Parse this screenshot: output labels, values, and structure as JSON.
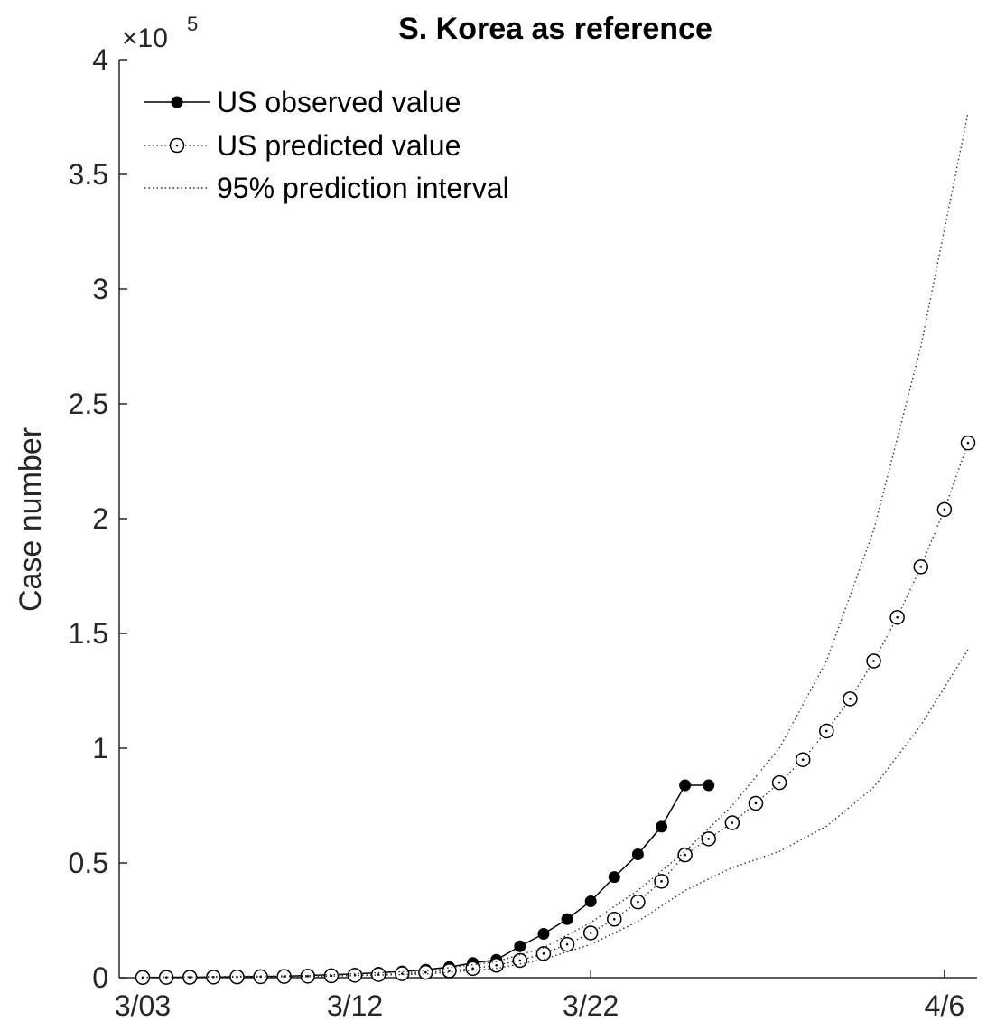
{
  "chart_data": {
    "type": "line",
    "title": "S. Korea as reference",
    "ylabel": "Case number",
    "xlabel": "",
    "y_multiplier": {
      "base": "×10",
      "exponent": "5"
    },
    "ylim": [
      0,
      400000
    ],
    "xlim": [
      "2020-03-03",
      "2020-04-07"
    ],
    "yticks": [
      {
        "value": 0,
        "label": "0"
      },
      {
        "value": 50000,
        "label": "0.5"
      },
      {
        "value": 100000,
        "label": "1"
      },
      {
        "value": 150000,
        "label": "1.5"
      },
      {
        "value": 200000,
        "label": "2"
      },
      {
        "value": 250000,
        "label": "2.5"
      },
      {
        "value": 300000,
        "label": "3"
      },
      {
        "value": 350000,
        "label": "3.5"
      },
      {
        "value": 400000,
        "label": "4"
      }
    ],
    "xticks": [
      {
        "date": "2020-03-03",
        "label": "3/03"
      },
      {
        "date": "2020-03-12",
        "label": "3/12"
      },
      {
        "date": "2020-03-22",
        "label": "3/22"
      },
      {
        "date": "2020-04-06",
        "label": "4/6"
      }
    ],
    "legend": {
      "position": "top-left",
      "entries": [
        "US observed value",
        "US predicted value",
        "95% prediction interval"
      ]
    },
    "series": [
      {
        "name": "US observed value",
        "style": "solid-filled-markers",
        "x": [
          "2020-03-03",
          "2020-03-04",
          "2020-03-05",
          "2020-03-06",
          "2020-03-07",
          "2020-03-08",
          "2020-03-09",
          "2020-03-10",
          "2020-03-11",
          "2020-03-12",
          "2020-03-13",
          "2020-03-14",
          "2020-03-15",
          "2020-03-16",
          "2020-03-17",
          "2020-03-18",
          "2020-03-19",
          "2020-03-20",
          "2020-03-21",
          "2020-03-22",
          "2020-03-23",
          "2020-03-24",
          "2020-03-25",
          "2020-03-26",
          "2020-03-27"
        ],
        "values": [
          118,
          149,
          217,
          262,
          402,
          518,
          583,
          959,
          1281,
          1663,
          2179,
          2726,
          3499,
          4632,
          6421,
          7786,
          13680,
          19100,
          25493,
          33276,
          43847,
          53740,
          65778,
          83836,
          83836
        ]
      },
      {
        "name": "US predicted value",
        "style": "dotted-open-markers",
        "x": [
          "2020-03-03",
          "2020-03-04",
          "2020-03-05",
          "2020-03-06",
          "2020-03-07",
          "2020-03-08",
          "2020-03-09",
          "2020-03-10",
          "2020-03-11",
          "2020-03-12",
          "2020-03-13",
          "2020-03-14",
          "2020-03-15",
          "2020-03-16",
          "2020-03-17",
          "2020-03-18",
          "2020-03-19",
          "2020-03-20",
          "2020-03-21",
          "2020-03-22",
          "2020-03-23",
          "2020-03-24",
          "2020-03-25",
          "2020-03-26",
          "2020-03-27",
          "2020-03-28",
          "2020-03-29",
          "2020-03-30",
          "2020-03-31",
          "2020-04-01",
          "2020-04-02",
          "2020-04-03",
          "2020-04-04",
          "2020-04-05",
          "2020-04-06",
          "2020-04-07"
        ],
        "values": [
          100,
          150,
          200,
          260,
          330,
          420,
          520,
          650,
          820,
          1050,
          1350,
          1750,
          2300,
          3000,
          4000,
          5400,
          7500,
          10500,
          14500,
          19500,
          25500,
          33000,
          42000,
          53500,
          60500,
          67500,
          76000,
          85000,
          95000,
          107500,
          121500,
          138000,
          157000,
          179000,
          204000,
          233000
        ]
      },
      {
        "name": "95% prediction interval (upper)",
        "style": "dotted",
        "x": [
          "2020-03-03",
          "2020-03-10",
          "2020-03-15",
          "2020-03-18",
          "2020-03-20",
          "2020-03-22",
          "2020-03-24",
          "2020-03-26",
          "2020-03-28",
          "2020-03-30",
          "2020-04-01",
          "2020-04-03",
          "2020-04-05",
          "2020-04-07"
        ],
        "values": [
          150,
          900,
          3000,
          7000,
          13000,
          24000,
          38000,
          55000,
          75000,
          100000,
          138000,
          195000,
          275000,
          377000
        ]
      },
      {
        "name": "95% prediction interval (lower)",
        "style": "dotted",
        "x": [
          "2020-03-03",
          "2020-03-10",
          "2020-03-15",
          "2020-03-18",
          "2020-03-20",
          "2020-03-22",
          "2020-03-24",
          "2020-03-26",
          "2020-03-28",
          "2020-03-30",
          "2020-04-01",
          "2020-04-03",
          "2020-04-05",
          "2020-04-07"
        ],
        "values": [
          50,
          450,
          1600,
          4000,
          8000,
          14500,
          24500,
          38000,
          48000,
          55000,
          66000,
          83000,
          110000,
          143000
        ]
      }
    ]
  }
}
